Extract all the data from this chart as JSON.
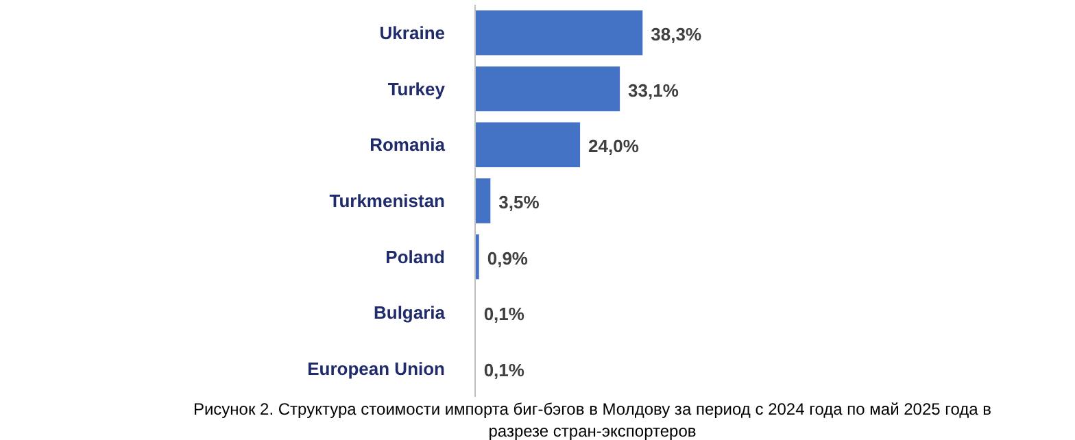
{
  "chart_data": {
    "type": "bar",
    "orientation": "horizontal",
    "categories": [
      "Ukraine",
      "Turkey",
      "Romania",
      "Turkmenistan",
      "Poland",
      "Bulgaria",
      "European Union"
    ],
    "values": [
      38.3,
      33.1,
      24.0,
      3.5,
      0.9,
      0.1,
      0.1
    ],
    "value_labels": [
      "38,3%",
      "33,1%",
      "24,0%",
      "3,5%",
      "0,9%",
      "0,1%",
      "0,1%"
    ],
    "color": "#4472c4",
    "annotations": [
      "Рисунок 2. Структура стоимости импорта биг-бэгов в Молдову за период с 2024 года по май 2025 года в разрезе стран-экспортеров"
    ]
  }
}
